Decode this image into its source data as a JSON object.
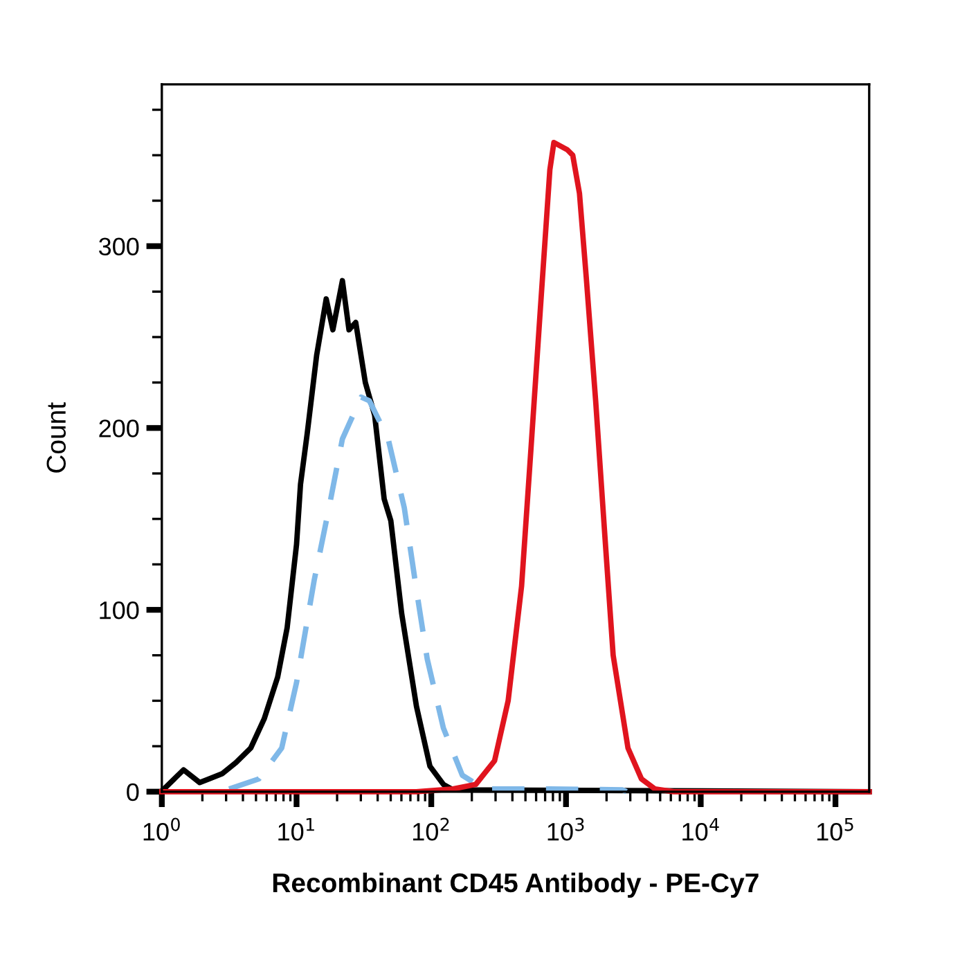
{
  "chart_data": {
    "type": "line",
    "xlabel": "Recombinant CD45 Antibody - PE-Cy7",
    "ylabel": "Count",
    "log": "x",
    "grid": false,
    "legend": false,
    "marker": "none",
    "xlim": [
      1,
      178000
    ],
    "ylim": [
      0,
      389
    ],
    "xticks": [
      {
        "value": 1,
        "label": "10$^{0}$"
      },
      {
        "value": 10,
        "label": "10$^{1}$"
      },
      {
        "value": 100,
        "label": "10$^{2}$"
      },
      {
        "value": 1000,
        "label": "10$^{3}$"
      },
      {
        "value": 10000,
        "label": "10$^{4}$"
      },
      {
        "value": 100000,
        "label": "10$^{5}$"
      }
    ],
    "yticks": [
      0,
      100,
      200,
      300
    ],
    "series": [
      {
        "color": "#000000",
        "line_style": "solid",
        "x": [
          1.02,
          1.45,
          1.91,
          2.24,
          2.82,
          3.55,
          4.57,
          5.75,
          7.24,
          8.51,
          10,
          10.7,
          12.0,
          14.1,
          16.6,
          18.6,
          21.9,
          24.5,
          27.5,
          32.4,
          38.0,
          44.7,
          50.1,
          60.3,
          77.6,
          97.7,
          123,
          145,
          178000
        ],
        "values": [
          1,
          12,
          5,
          7,
          10,
          16,
          24,
          40,
          63,
          90,
          136,
          169,
          197,
          240,
          271,
          254,
          281,
          254,
          258,
          225,
          207,
          161,
          149,
          98,
          47,
          14,
          4,
          1,
          0
        ]
      },
      {
        "color": "#7fb8e8",
        "line_style": "dashed",
        "x": [
          3.16,
          5.25,
          7.76,
          10,
          13.5,
          17.4,
          21.9,
          30.2,
          34.7,
          47.9,
          63.1,
          77.6,
          93.3,
          123,
          170,
          229,
          251,
          468,
          759,
          2630,
          2818
        ],
        "values": [
          1.5,
          7,
          24,
          60,
          116,
          156,
          194,
          217,
          215,
          194,
          156,
          111,
          73,
          35,
          9,
          3,
          1.5,
          1.5,
          1.5,
          1,
          0
        ]
      },
      {
        "color": "#e0141e",
        "line_style": "solid",
        "x": [
          1,
          77.6,
          145,
          214,
          295,
          372,
          468,
          550,
          646,
          759,
          813,
          1023,
          1122,
          1259,
          1413,
          1660,
          1950,
          2239,
          2884,
          3631,
          4571,
          6310,
          178000
        ],
        "values": [
          0,
          0,
          1.5,
          4,
          17,
          50,
          113,
          189,
          266,
          342,
          357,
          353,
          350,
          329,
          283,
          215,
          139,
          75,
          24,
          7,
          1.5,
          0,
          0
        ]
      }
    ]
  }
}
